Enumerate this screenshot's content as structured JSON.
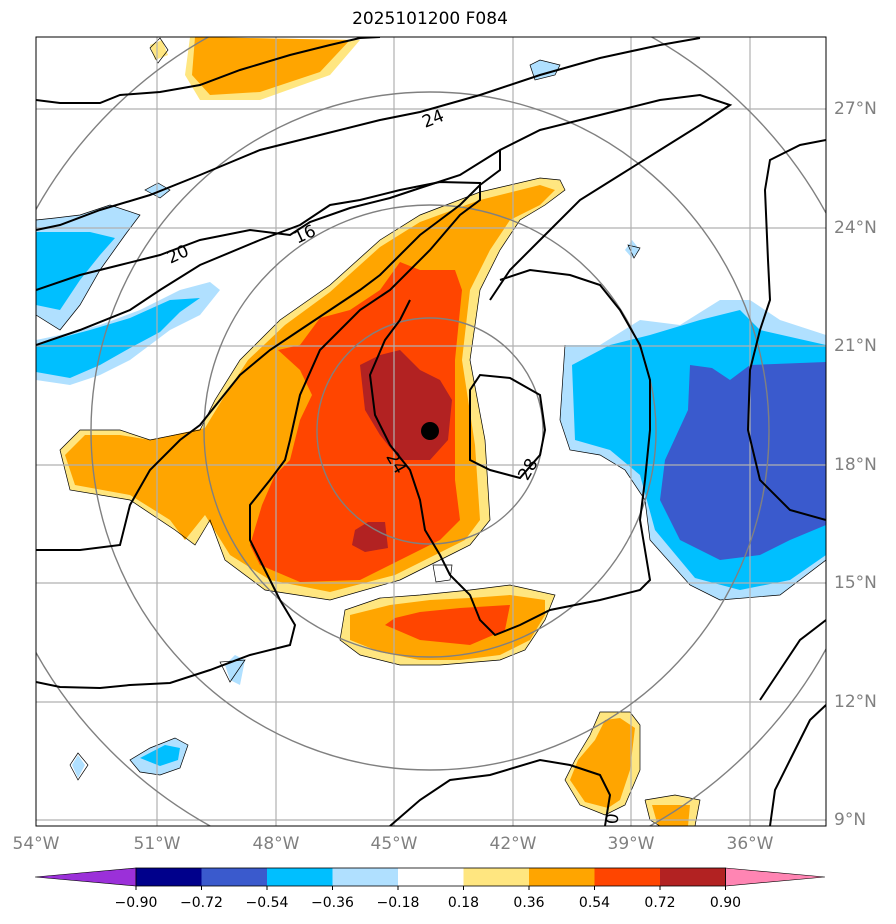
{
  "title": "2025101200 F084",
  "lon_labels": [
    "54°W",
    "51°W",
    "48°W",
    "45°W",
    "42°W",
    "39°W",
    "36°W"
  ],
  "lat_labels": [
    "27°N",
    "24°N",
    "21°N",
    "18°N",
    "15°N",
    "12°N",
    "9°N"
  ],
  "contour_labels": [
    "24",
    "16",
    "20",
    "24",
    "28",
    "0"
  ],
  "colorbar": {
    "ticks": [
      "−0.90",
      "−0.72",
      "−0.54",
      "−0.36",
      "−0.18",
      "0.18",
      "0.36",
      "0.54",
      "0.72",
      "0.90"
    ],
    "colors": [
      "#9b30d9",
      "#00008b",
      "#3a5acd",
      "#00bfff",
      "#b0e0ff",
      "#ffffff",
      "#ffe680",
      "#ffa500",
      "#ff4500",
      "#b22222",
      "#ff85b3"
    ]
  },
  "storm_center": {
    "lon": "44.1°W",
    "lat": "18.8°N"
  },
  "palette": {
    "grid": "#b0b0b0",
    "rings": "#808080",
    "contour": "#000000"
  }
}
